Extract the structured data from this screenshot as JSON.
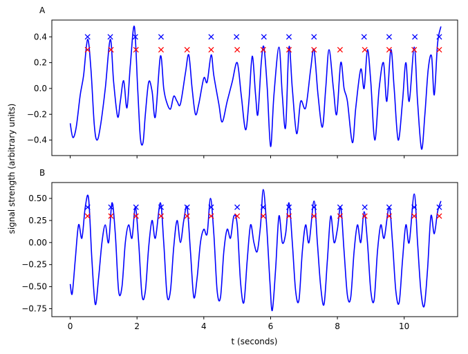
{
  "chart_data": [
    {
      "type": "line",
      "panel_label": "A",
      "xlim": [
        -0.55,
        11.6
      ],
      "ylim": [
        -0.52,
        0.53
      ],
      "xticks": [
        0,
        2,
        4,
        6,
        8,
        10
      ],
      "yticks": [
        -0.4,
        -0.2,
        0.0,
        0.2,
        0.4
      ],
      "ytick_labels": [
        "−0.4",
        "−0.2",
        "0.0",
        "0.2",
        "0.4"
      ],
      "show_xtick_labels": false,
      "line_color": "#0000ff",
      "signal": [
        [
          0.0,
          -0.27
        ],
        [
          0.08,
          -0.38
        ],
        [
          0.18,
          -0.3
        ],
        [
          0.3,
          -0.05
        ],
        [
          0.4,
          0.1
        ],
        [
          0.52,
          0.38
        ],
        [
          0.62,
          0.15
        ],
        [
          0.72,
          -0.28
        ],
        [
          0.8,
          -0.4
        ],
        [
          0.9,
          -0.3
        ],
        [
          1.05,
          0.0
        ],
        [
          1.2,
          0.38
        ],
        [
          1.3,
          0.05
        ],
        [
          1.42,
          -0.22
        ],
        [
          1.5,
          -0.1
        ],
        [
          1.6,
          0.06
        ],
        [
          1.7,
          -0.15
        ],
        [
          1.8,
          0.18
        ],
        [
          1.92,
          0.48
        ],
        [
          2.02,
          0.0
        ],
        [
          2.1,
          -0.38
        ],
        [
          2.18,
          -0.42
        ],
        [
          2.25,
          -0.2
        ],
        [
          2.35,
          0.05
        ],
        [
          2.45,
          -0.02
        ],
        [
          2.55,
          -0.22
        ],
        [
          2.7,
          0.25
        ],
        [
          2.8,
          0.0
        ],
        [
          2.88,
          -0.1
        ],
        [
          3.0,
          -0.16
        ],
        [
          3.1,
          -0.06
        ],
        [
          3.2,
          -0.1
        ],
        [
          3.3,
          -0.12
        ],
        [
          3.45,
          0.12
        ],
        [
          3.55,
          0.26
        ],
        [
          3.65,
          0.0
        ],
        [
          3.75,
          -0.2
        ],
        [
          3.85,
          -0.12
        ],
        [
          4.0,
          0.08
        ],
        [
          4.1,
          0.05
        ],
        [
          4.22,
          0.26
        ],
        [
          4.3,
          0.1
        ],
        [
          4.45,
          -0.12
        ],
        [
          4.55,
          -0.26
        ],
        [
          4.7,
          -0.1
        ],
        [
          4.85,
          0.05
        ],
        [
          5.0,
          0.2
        ],
        [
          5.12,
          -0.05
        ],
        [
          5.25,
          -0.32
        ],
        [
          5.35,
          -0.1
        ],
        [
          5.45,
          0.25
        ],
        [
          5.55,
          -0.05
        ],
        [
          5.62,
          -0.2
        ],
        [
          5.72,
          0.2
        ],
        [
          5.8,
          0.32
        ],
        [
          5.9,
          0.0
        ],
        [
          6.0,
          -0.45
        ],
        [
          6.1,
          -0.05
        ],
        [
          6.25,
          0.32
        ],
        [
          6.35,
          -0.05
        ],
        [
          6.45,
          -0.3
        ],
        [
          6.55,
          0.32
        ],
        [
          6.65,
          0.0
        ],
        [
          6.78,
          -0.35
        ],
        [
          6.9,
          -0.1
        ],
        [
          7.05,
          -0.15
        ],
        [
          7.2,
          0.15
        ],
        [
          7.3,
          0.3
        ],
        [
          7.42,
          -0.05
        ],
        [
          7.55,
          -0.3
        ],
        [
          7.65,
          0.0
        ],
        [
          7.75,
          0.3
        ],
        [
          7.88,
          0.0
        ],
        [
          7.98,
          -0.2
        ],
        [
          8.1,
          0.2
        ],
        [
          8.2,
          0.0
        ],
        [
          8.3,
          -0.1
        ],
        [
          8.45,
          -0.42
        ],
        [
          8.55,
          -0.15
        ],
        [
          8.7,
          0.15
        ],
        [
          8.8,
          0.0
        ],
        [
          8.9,
          0.3
        ],
        [
          9.0,
          0.05
        ],
        [
          9.12,
          -0.4
        ],
        [
          9.25,
          0.0
        ],
        [
          9.38,
          0.2
        ],
        [
          9.48,
          -0.1
        ],
        [
          9.6,
          0.3
        ],
        [
          9.7,
          0.0
        ],
        [
          9.82,
          -0.4
        ],
        [
          9.95,
          -0.1
        ],
        [
          10.05,
          0.2
        ],
        [
          10.15,
          -0.1
        ],
        [
          10.3,
          0.32
        ],
        [
          10.4,
          -0.1
        ],
        [
          10.52,
          -0.47
        ],
        [
          10.62,
          -0.2
        ],
        [
          10.72,
          0.15
        ],
        [
          10.82,
          0.25
        ],
        [
          10.9,
          -0.05
        ],
        [
          11.0,
          0.35
        ],
        [
          11.1,
          0.48
        ]
      ],
      "markers": [
        {
          "color": "#0000ff",
          "y": 0.4,
          "x": [
            0.52,
            1.2,
            1.95,
            2.72,
            4.22,
            4.98,
            5.8,
            6.55,
            7.3,
            8.8,
            9.55,
            10.32,
            11.05
          ]
        },
        {
          "color": "#ff0000",
          "y": 0.3,
          "x": [
            0.52,
            1.22,
            1.97,
            2.72,
            3.5,
            4.22,
            5.0,
            5.78,
            6.55,
            7.3,
            8.08,
            8.82,
            9.55,
            10.3,
            11.05
          ]
        }
      ]
    },
    {
      "type": "line",
      "panel_label": "B",
      "xlim": [
        -0.55,
        11.6
      ],
      "ylim": [
        -0.84,
        0.68
      ],
      "xticks": [
        0,
        2,
        4,
        6,
        8,
        10
      ],
      "yticks": [
        -0.75,
        -0.5,
        -0.25,
        0.0,
        0.25,
        0.5
      ],
      "ytick_labels": [
        "−0.75",
        "−0.50",
        "−0.25",
        "0.00",
        "0.25",
        "0.50"
      ],
      "show_xtick_labels": true,
      "line_color": "#0000ff",
      "signal": [
        [
          0.0,
          -0.47
        ],
        [
          0.06,
          -0.58
        ],
        [
          0.15,
          -0.2
        ],
        [
          0.25,
          0.2
        ],
        [
          0.35,
          0.05
        ],
        [
          0.45,
          0.4
        ],
        [
          0.55,
          0.5
        ],
        [
          0.65,
          -0.2
        ],
        [
          0.75,
          -0.7
        ],
        [
          0.85,
          -0.4
        ],
        [
          0.95,
          0.0
        ],
        [
          1.05,
          0.2
        ],
        [
          1.15,
          0.0
        ],
        [
          1.25,
          0.45
        ],
        [
          1.35,
          0.1
        ],
        [
          1.45,
          -0.55
        ],
        [
          1.55,
          -0.5
        ],
        [
          1.65,
          0.0
        ],
        [
          1.75,
          0.2
        ],
        [
          1.85,
          0.05
        ],
        [
          1.95,
          0.4
        ],
        [
          2.05,
          0.0
        ],
        [
          2.15,
          -0.6
        ],
        [
          2.25,
          -0.55
        ],
        [
          2.35,
          -0.05
        ],
        [
          2.45,
          0.25
        ],
        [
          2.55,
          0.05
        ],
        [
          2.7,
          0.45
        ],
        [
          2.8,
          0.0
        ],
        [
          2.9,
          -0.6
        ],
        [
          3.0,
          -0.55
        ],
        [
          3.1,
          -0.05
        ],
        [
          3.2,
          0.25
        ],
        [
          3.3,
          0.0
        ],
        [
          3.4,
          0.25
        ],
        [
          3.5,
          0.4
        ],
        [
          3.6,
          -0.1
        ],
        [
          3.7,
          -0.62
        ],
        [
          3.8,
          -0.4
        ],
        [
          3.9,
          0.0
        ],
        [
          4.0,
          0.15
        ],
        [
          4.1,
          0.1
        ],
        [
          4.2,
          0.5
        ],
        [
          4.3,
          0.1
        ],
        [
          4.4,
          -0.55
        ],
        [
          4.5,
          -0.62
        ],
        [
          4.6,
          -0.1
        ],
        [
          4.7,
          0.15
        ],
        [
          4.8,
          0.05
        ],
        [
          4.9,
          0.3
        ],
        [
          5.0,
          0.2
        ],
        [
          5.1,
          -0.45
        ],
        [
          5.2,
          -0.68
        ],
        [
          5.3,
          -0.2
        ],
        [
          5.4,
          0.2
        ],
        [
          5.5,
          0.0
        ],
        [
          5.6,
          -0.1
        ],
        [
          5.7,
          0.2
        ],
        [
          5.78,
          0.6
        ],
        [
          5.88,
          0.2
        ],
        [
          5.98,
          -0.45
        ],
        [
          6.05,
          -0.77
        ],
        [
          6.15,
          -0.3
        ],
        [
          6.25,
          0.3
        ],
        [
          6.35,
          0.0
        ],
        [
          6.45,
          0.1
        ],
        [
          6.55,
          0.45
        ],
        [
          6.65,
          0.0
        ],
        [
          6.75,
          -0.55
        ],
        [
          6.85,
          -0.65
        ],
        [
          6.95,
          -0.1
        ],
        [
          7.05,
          0.2
        ],
        [
          7.15,
          0.0
        ],
        [
          7.3,
          0.47
        ],
        [
          7.4,
          0.0
        ],
        [
          7.5,
          -0.5
        ],
        [
          7.6,
          -0.7
        ],
        [
          7.7,
          -0.2
        ],
        [
          7.8,
          0.3
        ],
        [
          7.9,
          0.0
        ],
        [
          8.0,
          0.15
        ],
        [
          8.1,
          0.4
        ],
        [
          8.2,
          -0.1
        ],
        [
          8.3,
          -0.6
        ],
        [
          8.4,
          -0.62
        ],
        [
          8.5,
          -0.1
        ],
        [
          8.6,
          0.2
        ],
        [
          8.7,
          0.0
        ],
        [
          8.8,
          0.35
        ],
        [
          8.9,
          0.0
        ],
        [
          9.0,
          -0.55
        ],
        [
          9.1,
          -0.65
        ],
        [
          9.2,
          -0.1
        ],
        [
          9.3,
          0.2
        ],
        [
          9.4,
          0.05
        ],
        [
          9.55,
          0.4
        ],
        [
          9.65,
          0.0
        ],
        [
          9.75,
          -0.55
        ],
        [
          9.85,
          -0.68
        ],
        [
          9.95,
          -0.2
        ],
        [
          10.05,
          0.2
        ],
        [
          10.15,
          0.0
        ],
        [
          10.3,
          0.55
        ],
        [
          10.4,
          0.0
        ],
        [
          10.5,
          -0.55
        ],
        [
          10.6,
          -0.72
        ],
        [
          10.7,
          -0.3
        ],
        [
          10.8,
          0.3
        ],
        [
          10.9,
          0.1
        ],
        [
          11.0,
          0.35
        ],
        [
          11.1,
          0.47
        ]
      ],
      "markers": [
        {
          "color": "#0000ff",
          "y": 0.4,
          "x": [
            0.52,
            1.22,
            1.97,
            2.72,
            3.5,
            4.22,
            5.0,
            5.78,
            6.55,
            7.3,
            8.08,
            8.82,
            9.55,
            10.3,
            11.05
          ]
        },
        {
          "color": "#ff0000",
          "y": 0.3,
          "x": [
            0.52,
            1.22,
            1.97,
            2.72,
            3.5,
            4.22,
            5.0,
            5.78,
            6.55,
            7.3,
            8.08,
            8.82,
            9.55,
            10.3,
            11.05
          ]
        }
      ]
    }
  ],
  "xlabel": "t (seconds)",
  "ylabel": "signal strength (arbitrary units)"
}
